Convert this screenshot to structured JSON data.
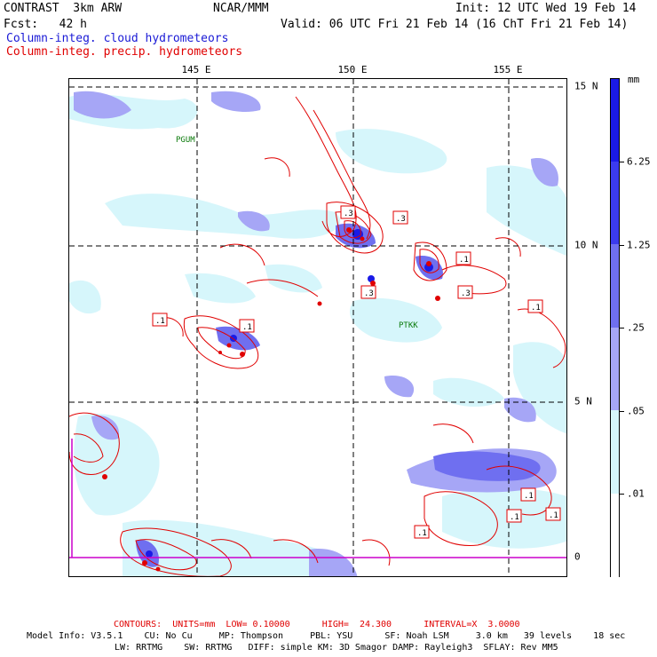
{
  "header": {
    "model": "CONTRAST  3km ARW",
    "org": "NCAR/MMM",
    "init": "Init: 12 UTC Wed 19 Feb 14",
    "fcst": "Fcst:   42 h",
    "valid": "Valid: 06 UTC Fri 21 Feb 14 (16 ChT Fri 21 Feb 14)",
    "field1": "Column-integ. cloud hydrometeors",
    "field2": "Column-integ. precip. hydrometeors"
  },
  "axes": {
    "lon_labels": [
      "145 E",
      "150 E",
      "155 E"
    ],
    "lat_labels": [
      "15 N",
      "10 N",
      "5 N",
      "0"
    ]
  },
  "stations": {
    "pgum": "PGUM",
    "ptkk": "PTKK"
  },
  "contour_labels": [
    ".3",
    ".3",
    ".1",
    ".3",
    ".1",
    ".3",
    ".1",
    ".1",
    ".1",
    ".1",
    ".1",
    ".1"
  ],
  "legend": {
    "unit": "mm",
    "levels": [
      "6.25",
      "1.25",
      ".25",
      ".05",
      ".01"
    ],
    "colors": [
      "#1a1ae6",
      "#3b3bee",
      "#6f6ff0",
      "#a6a6f6",
      "#d6f6fb",
      "#ffffff"
    ]
  },
  "footer": {
    "contours": "CONTOURS:  UNITS=mm  LOW= 0.10000      HIGH=  24.300      INTERVAL=X  3.0000",
    "model_info_1": "Model Info: V3.5.1    CU: No Cu     MP: Thompson     PBL: YSU      SF: Noah LSM     3.0 km   39 levels    18 sec",
    "model_info_2": "LW: RRTMG    SW: RRTMG   DIFF: simple KM: 3D Smagor DAMP: Rayleigh3  SFLAY: Rev MM5"
  },
  "colors": {
    "cloud": "#7a7af0",
    "precip": "#e00000",
    "grid": "#000000",
    "equator": "#cc00cc"
  }
}
